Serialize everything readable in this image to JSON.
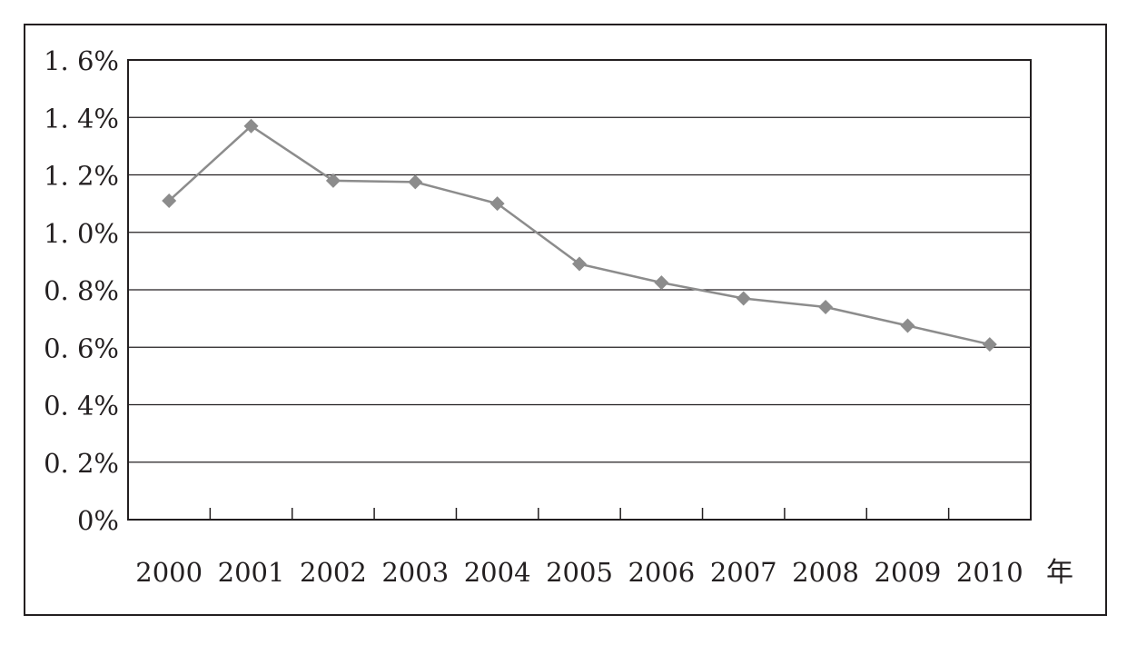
{
  "chart_data": {
    "type": "line",
    "title": "",
    "xlabel": "年",
    "ylabel": "",
    "x": [
      "2000",
      "2001",
      "2002",
      "2003",
      "2004",
      "2005",
      "2006",
      "2007",
      "2008",
      "2009",
      "2010"
    ],
    "series": [
      {
        "values": [
          1.11,
          1.37,
          1.18,
          1.175,
          1.1,
          0.89,
          0.825,
          0.77,
          0.74,
          0.675,
          0.61
        ],
        "color": "#8c8c8c",
        "marker": "diamond"
      }
    ],
    "yticks": [
      0,
      0.2,
      0.4,
      0.6,
      0.8,
      1.0,
      1.2,
      1.4,
      1.6
    ],
    "ytick_labels": [
      "0%",
      "0. 2%",
      "0. 4%",
      "0. 6%",
      "0. 8%",
      "1. 0%",
      "1. 2%",
      "1. 4%",
      "1. 6%"
    ],
    "ylim": [
      0,
      1.6
    ],
    "grid": "horizontal",
    "legend": "none"
  }
}
